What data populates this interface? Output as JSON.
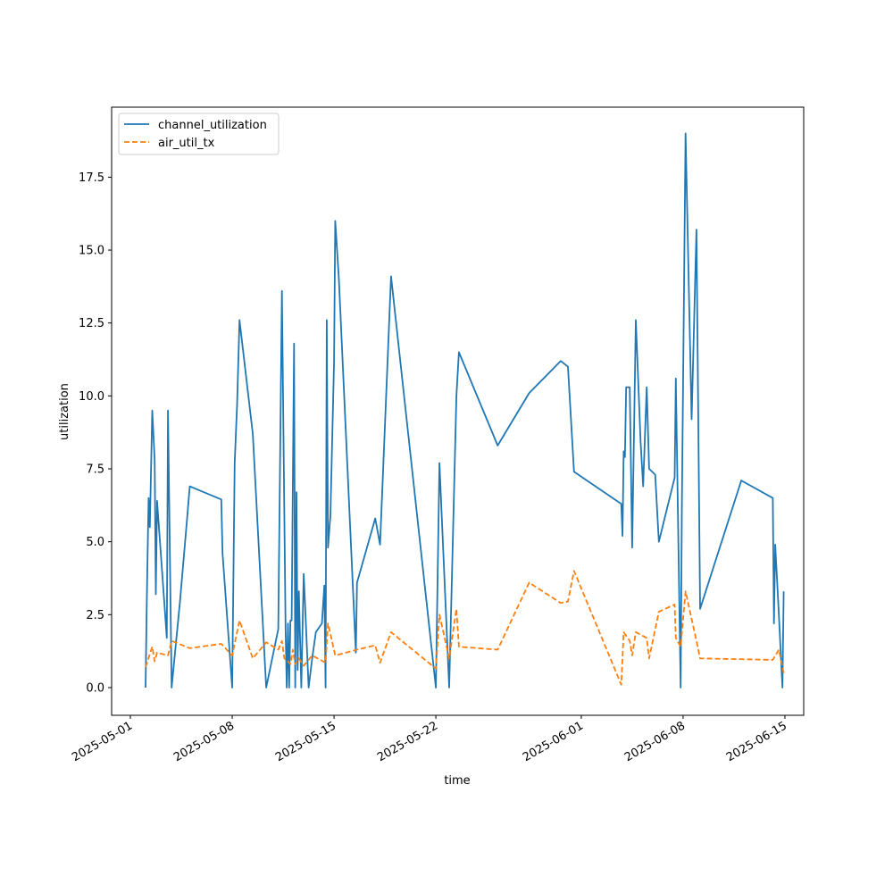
{
  "chart_data": {
    "type": "line",
    "title": "",
    "xlabel": "time",
    "ylabel": "utilization",
    "x_axis_type": "date",
    "xlim": [
      "2025-04-29T17:00",
      "2025-06-16T07:00"
    ],
    "ylim": [
      -0.95,
      19.9
    ],
    "x_ticks": [
      "2025-05-01",
      "2025-05-08",
      "2025-05-15",
      "2025-05-22",
      "2025-06-01",
      "2025-06-08",
      "2025-06-15"
    ],
    "y_ticks": [
      0.0,
      2.5,
      5.0,
      7.5,
      10.0,
      12.5,
      15.0,
      17.5
    ],
    "y_tick_labels": [
      "0.0",
      "2.5",
      "5.0",
      "7.5",
      "10.0",
      "12.5",
      "15.0",
      "17.5"
    ],
    "grid": false,
    "legend": "top-left",
    "series": [
      {
        "name": "channel_utilization",
        "color": "#1f77b4",
        "style": "solid",
        "points": [
          [
            "2025-05-02T01:00",
            0.0
          ],
          [
            "2025-05-02T03:00",
            3.0
          ],
          [
            "2025-05-02T06:00",
            6.5
          ],
          [
            "2025-05-02T08:00",
            5.5
          ],
          [
            "2025-05-02T12:00",
            9.5
          ],
          [
            "2025-05-02T16:00",
            7.8
          ],
          [
            "2025-05-02T18:00",
            3.2
          ],
          [
            "2025-05-02T20:00",
            6.4
          ],
          [
            "2025-05-03T12:00",
            1.7
          ],
          [
            "2025-05-03T14:00",
            9.5
          ],
          [
            "2025-05-03T20:00",
            0.0
          ],
          [
            "2025-05-04T10:00",
            3.0
          ],
          [
            "2025-05-04T22:00",
            5.9
          ],
          [
            "2025-05-05T02:00",
            6.9
          ],
          [
            "2025-05-07T06:00",
            6.45
          ],
          [
            "2025-05-07T08:00",
            4.6
          ],
          [
            "2025-05-08T00:00",
            0.0
          ],
          [
            "2025-05-08T04:00",
            7.7
          ],
          [
            "2025-05-08T08:00",
            9.7
          ],
          [
            "2025-05-08T12:00",
            12.6
          ],
          [
            "2025-05-09T10:00",
            8.7
          ],
          [
            "2025-05-10T08:00",
            0.0
          ],
          [
            "2025-05-11T04:00",
            2.0
          ],
          [
            "2025-05-11T10:00",
            13.6
          ],
          [
            "2025-05-11T16:00",
            2.0
          ],
          [
            "2025-05-11T18:00",
            0.0
          ],
          [
            "2025-05-11T20:00",
            2.2
          ],
          [
            "2025-05-11T22:00",
            0.0
          ],
          [
            "2025-05-12T00:00",
            2.3
          ],
          [
            "2025-05-12T02:00",
            2.3
          ],
          [
            "2025-05-12T06:00",
            11.8
          ],
          [
            "2025-05-12T08:00",
            0.0
          ],
          [
            "2025-05-12T10:00",
            6.7
          ],
          [
            "2025-05-12T12:00",
            0.6
          ],
          [
            "2025-05-12T14:00",
            3.3
          ],
          [
            "2025-05-12T18:00",
            0.0
          ],
          [
            "2025-05-12T22:00",
            3.9
          ],
          [
            "2025-05-13T02:00",
            2.0
          ],
          [
            "2025-05-13T06:00",
            0.0
          ],
          [
            "2025-05-13T12:00",
            1.0
          ],
          [
            "2025-05-13T18:00",
            1.9
          ],
          [
            "2025-05-14T04:00",
            2.2
          ],
          [
            "2025-05-14T08:00",
            3.5
          ],
          [
            "2025-05-14T10:00",
            0.0
          ],
          [
            "2025-05-14T12:00",
            12.6
          ],
          [
            "2025-05-14T14:00",
            4.8
          ],
          [
            "2025-05-14T18:00",
            5.9
          ],
          [
            "2025-05-15T00:00",
            11.2
          ],
          [
            "2025-05-15T02:00",
            16.0
          ],
          [
            "2025-05-15T08:00",
            14.0
          ],
          [
            "2025-05-16T12:00",
            1.2
          ],
          [
            "2025-05-16T14:00",
            3.6
          ],
          [
            "2025-05-17T20:00",
            5.8
          ],
          [
            "2025-05-18T04:00",
            4.9
          ],
          [
            "2025-05-18T22:00",
            14.1
          ],
          [
            "2025-05-22T00:00",
            0.0
          ],
          [
            "2025-05-22T06:00",
            7.7
          ],
          [
            "2025-05-22T22:00",
            0.0
          ],
          [
            "2025-05-23T10:00",
            10.0
          ],
          [
            "2025-05-23T14:00",
            11.5
          ],
          [
            "2025-05-26T06:00",
            8.3
          ],
          [
            "2025-05-28T10:00",
            10.1
          ],
          [
            "2025-05-30T14:00",
            11.2
          ],
          [
            "2025-05-31T02:00",
            11.0
          ],
          [
            "2025-05-31T12:00",
            7.4
          ],
          [
            "2025-06-03T18:00",
            6.3
          ],
          [
            "2025-06-03T20:00",
            5.2
          ],
          [
            "2025-06-03T22:00",
            8.1
          ],
          [
            "2025-06-04T00:00",
            7.9
          ],
          [
            "2025-06-04T02:00",
            10.3
          ],
          [
            "2025-06-04T08:00",
            10.3
          ],
          [
            "2025-06-04T12:00",
            4.8
          ],
          [
            "2025-06-04T18:00",
            12.6
          ],
          [
            "2025-06-05T02:00",
            8.4
          ],
          [
            "2025-06-05T06:00",
            6.9
          ],
          [
            "2025-06-05T12:00",
            10.3
          ],
          [
            "2025-06-05T16:00",
            7.5
          ],
          [
            "2025-06-06T02:00",
            7.3
          ],
          [
            "2025-06-06T08:00",
            5.0
          ],
          [
            "2025-06-07T10:00",
            7.2
          ],
          [
            "2025-06-07T12:00",
            10.6
          ],
          [
            "2025-06-07T20:00",
            0.0
          ],
          [
            "2025-06-07T22:00",
            6.3
          ],
          [
            "2025-06-08T04:00",
            19.0
          ],
          [
            "2025-06-08T14:00",
            9.2
          ],
          [
            "2025-06-08T22:00",
            15.7
          ],
          [
            "2025-06-09T04:00",
            2.7
          ],
          [
            "2025-06-12T00:00",
            7.1
          ],
          [
            "2025-06-14T04:00",
            6.5
          ],
          [
            "2025-06-14T06:00",
            2.2
          ],
          [
            "2025-06-14T08:00",
            4.9
          ],
          [
            "2025-06-14T14:00",
            2.5
          ],
          [
            "2025-06-14T20:00",
            0.0
          ],
          [
            "2025-06-14T22:00",
            3.3
          ]
        ]
      },
      {
        "name": "air_util_tx",
        "color": "#ff7f0e",
        "style": "dashed",
        "points": [
          [
            "2025-05-02T01:00",
            0.7
          ],
          [
            "2025-05-02T12:00",
            1.4
          ],
          [
            "2025-05-02T16:00",
            0.9
          ],
          [
            "2025-05-02T20:00",
            1.2
          ],
          [
            "2025-05-03T14:00",
            1.1
          ],
          [
            "2025-05-03T20:00",
            1.6
          ],
          [
            "2025-05-05T02:00",
            1.35
          ],
          [
            "2025-05-07T06:00",
            1.5
          ],
          [
            "2025-05-08T00:00",
            1.1
          ],
          [
            "2025-05-08T12:00",
            2.3
          ],
          [
            "2025-05-09T10:00",
            1.0
          ],
          [
            "2025-05-10T08:00",
            1.55
          ],
          [
            "2025-05-11T04:00",
            1.3
          ],
          [
            "2025-05-11T10:00",
            1.6
          ],
          [
            "2025-05-11T14:00",
            1.0
          ],
          [
            "2025-05-11T20:00",
            0.9
          ],
          [
            "2025-05-12T00:00",
            0.8
          ],
          [
            "2025-05-12T04:00",
            1.3
          ],
          [
            "2025-05-12T08:00",
            0.8
          ],
          [
            "2025-05-12T14:00",
            1.0
          ],
          [
            "2025-05-12T22:00",
            0.75
          ],
          [
            "2025-05-13T12:00",
            1.1
          ],
          [
            "2025-05-14T10:00",
            0.85
          ],
          [
            "2025-05-14T14:00",
            2.2
          ],
          [
            "2025-05-15T02:00",
            1.1
          ],
          [
            "2025-05-16T14:00",
            1.3
          ],
          [
            "2025-05-17T20:00",
            1.45
          ],
          [
            "2025-05-18T04:00",
            0.85
          ],
          [
            "2025-05-18T22:00",
            1.9
          ],
          [
            "2025-05-22T00:00",
            0.65
          ],
          [
            "2025-05-22T06:00",
            2.5
          ],
          [
            "2025-05-22T22:00",
            1.0
          ],
          [
            "2025-05-23T10:00",
            2.7
          ],
          [
            "2025-05-23T14:00",
            1.4
          ],
          [
            "2025-05-26T06:00",
            1.3
          ],
          [
            "2025-05-28T10:00",
            3.6
          ],
          [
            "2025-05-30T14:00",
            2.9
          ],
          [
            "2025-05-31T02:00",
            2.95
          ],
          [
            "2025-05-31T12:00",
            4.0
          ],
          [
            "2025-06-03T18:00",
            0.1
          ],
          [
            "2025-06-03T22:00",
            1.9
          ],
          [
            "2025-06-04T08:00",
            1.6
          ],
          [
            "2025-06-04T12:00",
            1.1
          ],
          [
            "2025-06-04T18:00",
            1.9
          ],
          [
            "2025-06-05T12:00",
            1.7
          ],
          [
            "2025-06-05T16:00",
            1.0
          ],
          [
            "2025-06-06T08:00",
            2.6
          ],
          [
            "2025-06-07T10:00",
            2.85
          ],
          [
            "2025-06-07T12:00",
            1.7
          ],
          [
            "2025-06-07T20:00",
            1.4
          ],
          [
            "2025-06-08T04:00",
            3.3
          ],
          [
            "2025-06-08T22:00",
            1.6
          ],
          [
            "2025-06-09T04:00",
            1.0
          ],
          [
            "2025-06-14T04:00",
            0.95
          ],
          [
            "2025-06-14T14:00",
            1.3
          ],
          [
            "2025-06-14T22:00",
            0.5
          ]
        ]
      }
    ]
  }
}
